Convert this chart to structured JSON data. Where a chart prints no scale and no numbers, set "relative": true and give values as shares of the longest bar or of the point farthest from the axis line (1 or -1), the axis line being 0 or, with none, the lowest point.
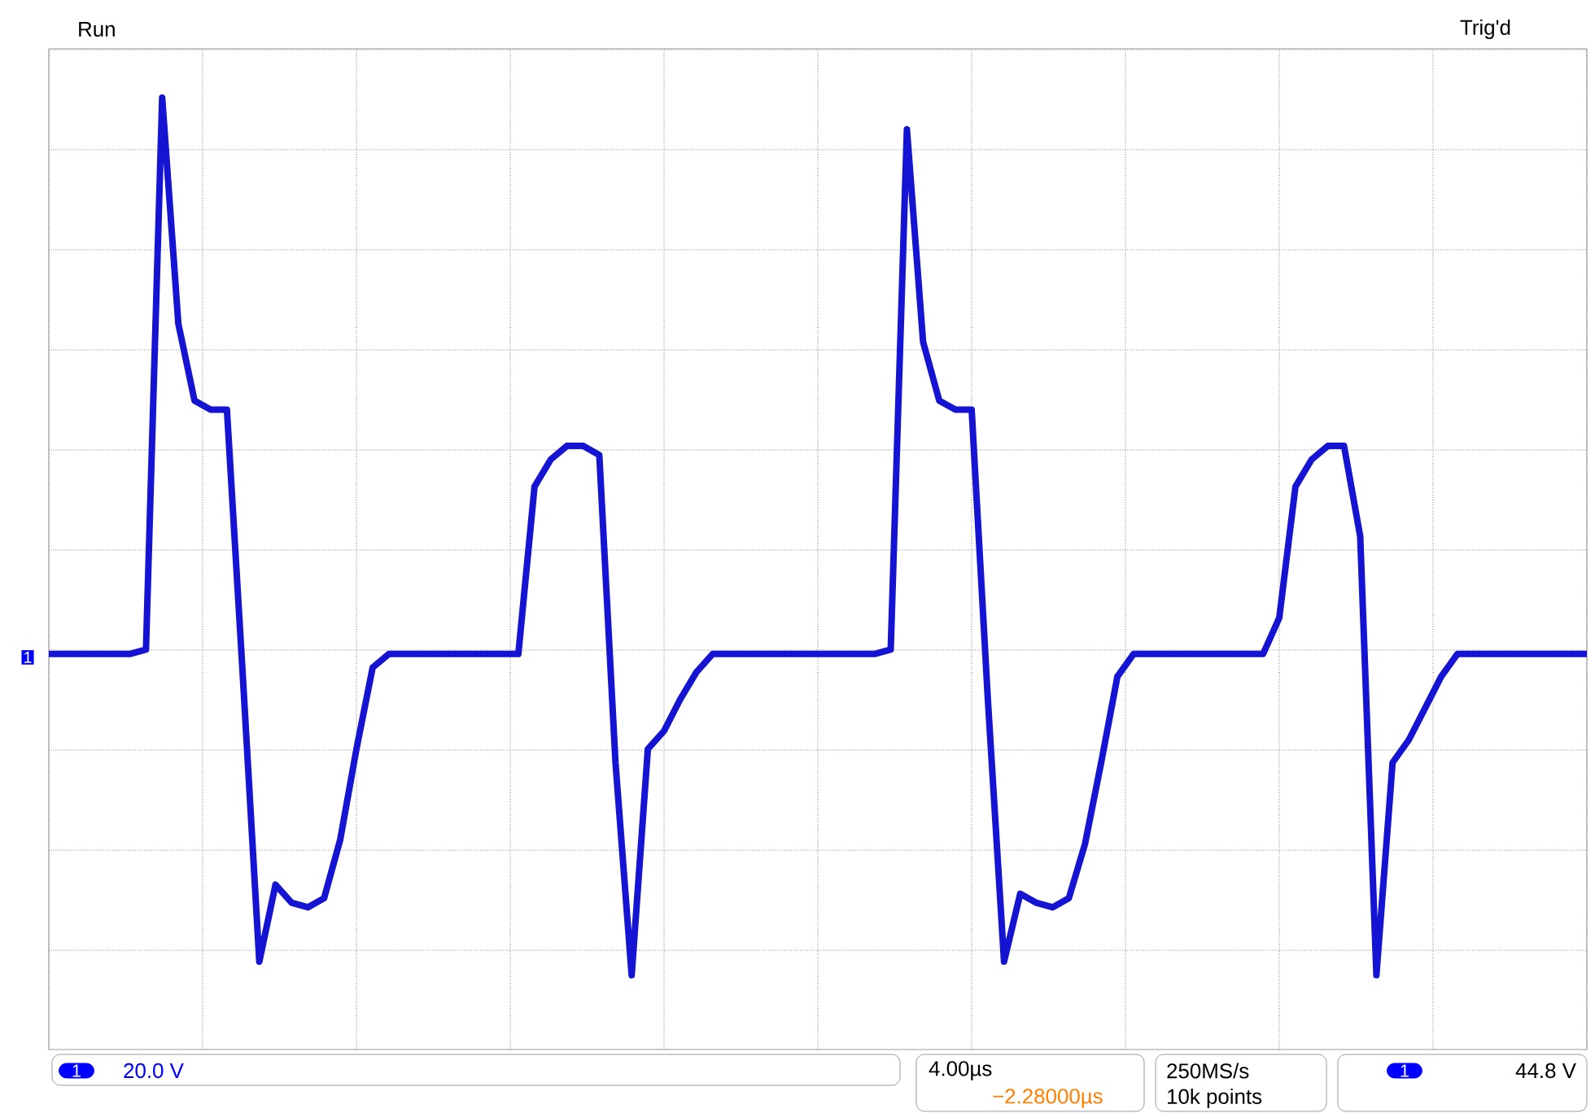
{
  "chart_data": {
    "type": "line",
    "relative": true,
    "grid": true,
    "categories": [
      null,
      null,
      null,
      null,
      null,
      null,
      null,
      null,
      null,
      null,
      null,
      null,
      null,
      null,
      null,
      null,
      null,
      null,
      null,
      null,
      null,
      null,
      null,
      null,
      null,
      null,
      null,
      null,
      null,
      null,
      null,
      null,
      null,
      null,
      null,
      null,
      null,
      null,
      null,
      null,
      null,
      null,
      null,
      null,
      null,
      null,
      null,
      null,
      null,
      null,
      null,
      null,
      null,
      null,
      null,
      null,
      null,
      null,
      null,
      null,
      null,
      null,
      null,
      null,
      null,
      null,
      null,
      null,
      null,
      null,
      null,
      null,
      null,
      null,
      null,
      null,
      null,
      null,
      null,
      null,
      null,
      null,
      null,
      null,
      null,
      null,
      null,
      null,
      null,
      null,
      null,
      null,
      null,
      null,
      null,
      null
    ],
    "series": [
      {
        "color": "#1414d2",
        "values": [
          -0.23,
          -0.23,
          -0.23,
          -0.23,
          -0.23,
          -0.23,
          -0.22,
          1,
          0.5,
          0.33,
          0.31,
          0.31,
          -0.29,
          -0.91,
          -0.74,
          -0.78,
          -0.79,
          -0.77,
          -0.64,
          -0.44,
          -0.26,
          -0.23,
          -0.23,
          -0.23,
          -0.23,
          -0.23,
          -0.23,
          -0.23,
          -0.23,
          -0.23,
          0.14,
          0.2,
          0.23,
          0.23,
          0.21,
          -0.47,
          -0.94,
          -0.44,
          -0.4,
          -0.33,
          -0.27,
          -0.23,
          -0.23,
          -0.23,
          -0.23,
          -0.23,
          -0.23,
          -0.23,
          -0.23,
          -0.23,
          -0.23,
          -0.23,
          -0.22,
          0.93,
          0.46,
          0.33,
          0.31,
          0.31,
          -0.33,
          -0.91,
          -0.76,
          -0.78,
          -0.79,
          -0.77,
          -0.65,
          -0.47,
          -0.28,
          -0.23,
          -0.23,
          -0.23,
          -0.23,
          -0.23,
          -0.23,
          -0.23,
          -0.23,
          -0.23,
          -0.15,
          0.14,
          0.2,
          0.23,
          0.23,
          0.03,
          -0.94,
          -0.47,
          -0.42,
          -0.35,
          -0.28,
          -0.23,
          -0.23,
          -0.23,
          -0.23,
          -0.23,
          -0.23,
          -0.23,
          -0.23,
          -0.23
        ]
      }
    ],
    "annotations": [
      "Run",
      "Trig'd",
      "1",
      "20.0 V",
      "4.00µs",
      "−2.28000µs",
      "250MS/s",
      "10k points",
      "44.8 V"
    ]
  }
}
